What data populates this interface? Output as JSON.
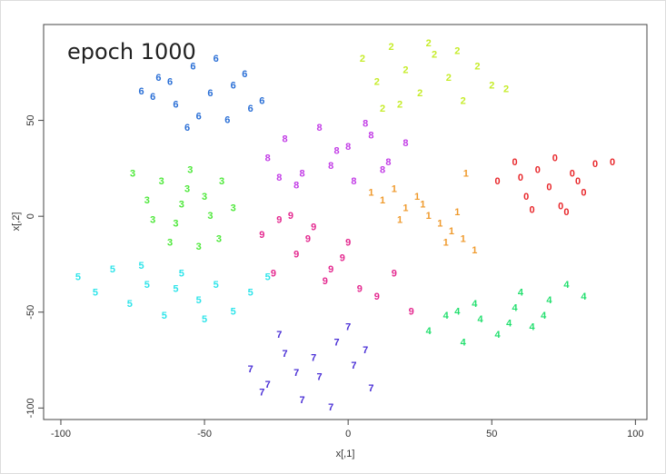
{
  "chart_data": {
    "type": "scatter",
    "title": "epoch 1000",
    "x_label": "x[,1]",
    "y_label": "x[,2]",
    "xlim": [
      -106,
      104
    ],
    "ylim": [
      -106,
      100
    ],
    "xticks": [
      -100,
      -50,
      0,
      50,
      100
    ],
    "yticks": [
      -100,
      -50,
      0,
      50
    ],
    "series": [
      {
        "name": "0",
        "color": "#e8262a",
        "x": [
          52,
          58,
          62,
          66,
          70,
          74,
          78,
          82,
          86,
          92,
          64,
          72,
          80,
          60,
          76
        ],
        "values": [
          18,
          28,
          10,
          24,
          15,
          5,
          22,
          12,
          27,
          28,
          3,
          30,
          18,
          20,
          2
        ]
      },
      {
        "name": "1",
        "color": "#ef9a2c",
        "x": [
          8,
          12,
          16,
          20,
          24,
          28,
          32,
          36,
          40,
          44,
          18,
          26,
          34,
          38,
          41
        ],
        "values": [
          12,
          8,
          14,
          4,
          10,
          0,
          -4,
          -8,
          -12,
          -18,
          -2,
          6,
          -14,
          2,
          22
        ]
      },
      {
        "name": "2",
        "color": "#c6ec2a",
        "x": [
          5,
          10,
          15,
          20,
          25,
          30,
          35,
          40,
          45,
          50,
          55,
          18,
          28,
          38,
          12
        ],
        "values": [
          82,
          70,
          88,
          76,
          64,
          84,
          72,
          60,
          78,
          68,
          66,
          58,
          90,
          86,
          56
        ]
      },
      {
        "name": "3",
        "color": "#4ee83a",
        "x": [
          -75,
          -70,
          -65,
          -60,
          -55,
          -50,
          -45,
          -40,
          -62,
          -52,
          -58,
          -44,
          -68,
          -48,
          -56
        ],
        "values": [
          22,
          8,
          18,
          -4,
          24,
          10,
          -12,
          4,
          -14,
          -16,
          6,
          18,
          -2,
          0,
          14
        ]
      },
      {
        "name": "4",
        "color": "#22df6e",
        "x": [
          28,
          34,
          40,
          46,
          52,
          58,
          64,
          70,
          76,
          82,
          44,
          56,
          68,
          38,
          60
        ],
        "values": [
          -60,
          -52,
          -66,
          -54,
          -62,
          -48,
          -58,
          -44,
          -36,
          -42,
          -46,
          -56,
          -52,
          -50,
          -40
        ]
      },
      {
        "name": "5",
        "color": "#2fe4ea",
        "x": [
          -94,
          -88,
          -82,
          -76,
          -70,
          -64,
          -58,
          -52,
          -46,
          -40,
          -34,
          -28,
          -72,
          -60,
          -50
        ],
        "values": [
          -32,
          -40,
          -28,
          -46,
          -36,
          -52,
          -30,
          -44,
          -36,
          -50,
          -40,
          -32,
          -26,
          -38,
          -54
        ]
      },
      {
        "name": "6",
        "color": "#2a6fd6",
        "x": [
          -72,
          -66,
          -60,
          -54,
          -48,
          -42,
          -36,
          -30,
          -56,
          -46,
          -62,
          -40,
          -52,
          -34,
          -68
        ],
        "values": [
          65,
          72,
          58,
          78,
          64,
          50,
          74,
          60,
          46,
          82,
          70,
          68,
          52,
          56,
          62
        ]
      },
      {
        "name": "7",
        "color": "#4a2fd6",
        "x": [
          -34,
          -28,
          -22,
          -16,
          -10,
          -4,
          2,
          8,
          -24,
          -12,
          0,
          -18,
          6,
          -30,
          -6
        ],
        "values": [
          -80,
          -88,
          -72,
          -96,
          -84,
          -66,
          -78,
          -90,
          -62,
          -74,
          -58,
          -82,
          -70,
          -92,
          -100
        ]
      },
      {
        "name": "8",
        "color": "#c23ce6",
        "x": [
          -28,
          -22,
          -16,
          -10,
          -4,
          2,
          8,
          14,
          20,
          -18,
          -6,
          6,
          -24,
          0,
          12
        ],
        "values": [
          30,
          40,
          22,
          46,
          34,
          18,
          42,
          28,
          38,
          16,
          26,
          48,
          20,
          36,
          24
        ]
      },
      {
        "name": "9",
        "color": "#e4288f",
        "x": [
          -30,
          -24,
          -18,
          -12,
          -6,
          0,
          -26,
          -20,
          -14,
          -8,
          4,
          10,
          16,
          22,
          -2
        ],
        "values": [
          -10,
          -2,
          -20,
          -6,
          -28,
          -14,
          -30,
          0,
          -12,
          -34,
          -38,
          -42,
          -30,
          -50,
          -22
        ]
      }
    ]
  }
}
